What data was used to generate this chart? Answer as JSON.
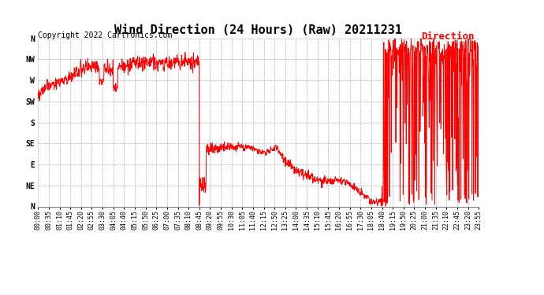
{
  "title": "Wind Direction (24 Hours) (Raw) 20211231",
  "copyright": "Copyright 2022 Cartronics.com",
  "legend_label": "Direction",
  "line_color": "red",
  "background_color": "#ffffff",
  "grid_color": "#b0b0b0",
  "ytick_labels": [
    "N",
    "NW",
    "W",
    "SW",
    "S",
    "SE",
    "E",
    "NE",
    "N"
  ],
  "ytick_values": [
    360,
    315,
    270,
    225,
    180,
    135,
    90,
    45,
    0
  ],
  "ylim": [
    0,
    360
  ],
  "xlim_minutes": [
    0,
    1435
  ],
  "title_fontsize": 11,
  "axis_fontsize": 7,
  "copyright_fontsize": 7,
  "legend_fontsize": 9
}
